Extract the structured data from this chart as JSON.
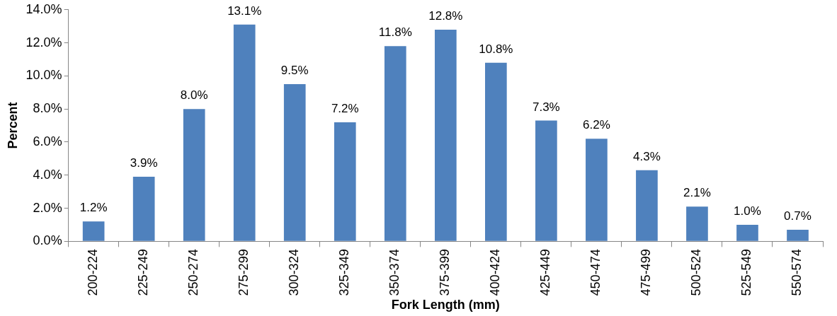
{
  "chart_data": {
    "type": "bar",
    "xlabel": "Fork Length (mm)",
    "ylabel": "Percent",
    "categories": [
      "200-224",
      "225-249",
      "250-274",
      "275-299",
      "300-324",
      "325-349",
      "350-374",
      "375-399",
      "400-424",
      "425-449",
      "450-474",
      "475-499",
      "500-524",
      "525-549",
      "550-574"
    ],
    "values": [
      1.2,
      3.9,
      8.0,
      13.1,
      9.5,
      7.2,
      11.8,
      12.8,
      10.8,
      7.3,
      6.2,
      4.3,
      2.1,
      1.0,
      0.7
    ],
    "value_labels": [
      "1.2%",
      "3.9%",
      "8.0%",
      "13.1%",
      "9.5%",
      "7.2%",
      "11.8%",
      "12.8%",
      "10.8%",
      "7.3%",
      "6.2%",
      "4.3%",
      "2.1%",
      "1.0%",
      "0.7%"
    ],
    "color": "#4f81bd",
    "ylim": [
      0,
      14
    ],
    "yticks": [
      {
        "value": 0,
        "label": "0.0%"
      },
      {
        "value": 2,
        "label": "2.0%"
      },
      {
        "value": 4,
        "label": "4.0%"
      },
      {
        "value": 6,
        "label": "6.0%"
      },
      {
        "value": 8,
        "label": "8.0%"
      },
      {
        "value": 10,
        "label": "10.0%"
      },
      {
        "value": 12,
        "label": "12.0%"
      },
      {
        "value": 14,
        "label": "14.0%"
      }
    ],
    "grid": false,
    "legend": false
  }
}
